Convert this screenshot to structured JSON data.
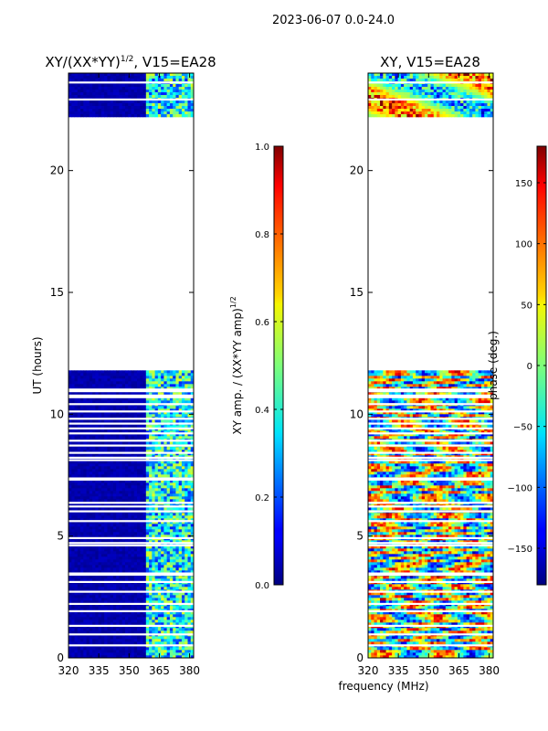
{
  "figure_title": "2023-06-07 0.0-24.0",
  "chart_data": [
    {
      "type": "heatmap",
      "title_main": "XY/(XX*YY)",
      "title_sup": "1/2",
      "title_rest": ", V15=EA28",
      "xlabel": "",
      "ylabel": "UT (hours)",
      "xlim": [
        320,
        382
      ],
      "ylim": [
        0,
        24
      ],
      "xticks": [
        "320",
        "335",
        "350",
        "365",
        "380"
      ],
      "yticks": [
        "0",
        "5",
        "10",
        "15",
        "20"
      ],
      "data_coverage_hours": [
        [
          0,
          11.8
        ],
        [
          22.2,
          24
        ]
      ],
      "colorbar": {
        "label_main": "XY amp. / (XX*YY amp)",
        "label_sup": "1/2",
        "range": [
          0.0,
          1.0
        ],
        "ticks": [
          "0.0",
          "0.2",
          "0.4",
          "0.6",
          "0.8",
          "1.0"
        ]
      }
    },
    {
      "type": "heatmap",
      "title": "XY, V15=EA28",
      "xlabel": "frequency (MHz)",
      "ylabel": "",
      "xlim": [
        320,
        382
      ],
      "ylim": [
        0,
        24
      ],
      "xticks": [
        "320",
        "335",
        "350",
        "365",
        "380"
      ],
      "yticks": [
        "0",
        "5",
        "10",
        "15",
        "20"
      ],
      "data_coverage_hours": [
        [
          0,
          11.8
        ],
        [
          22.2,
          24
        ]
      ],
      "colorbar": {
        "label": "phase (deg.)",
        "range": [
          -180,
          180
        ],
        "ticks": [
          "-150",
          "-100",
          "-50",
          "0",
          "50",
          "100",
          "150"
        ]
      }
    }
  ]
}
